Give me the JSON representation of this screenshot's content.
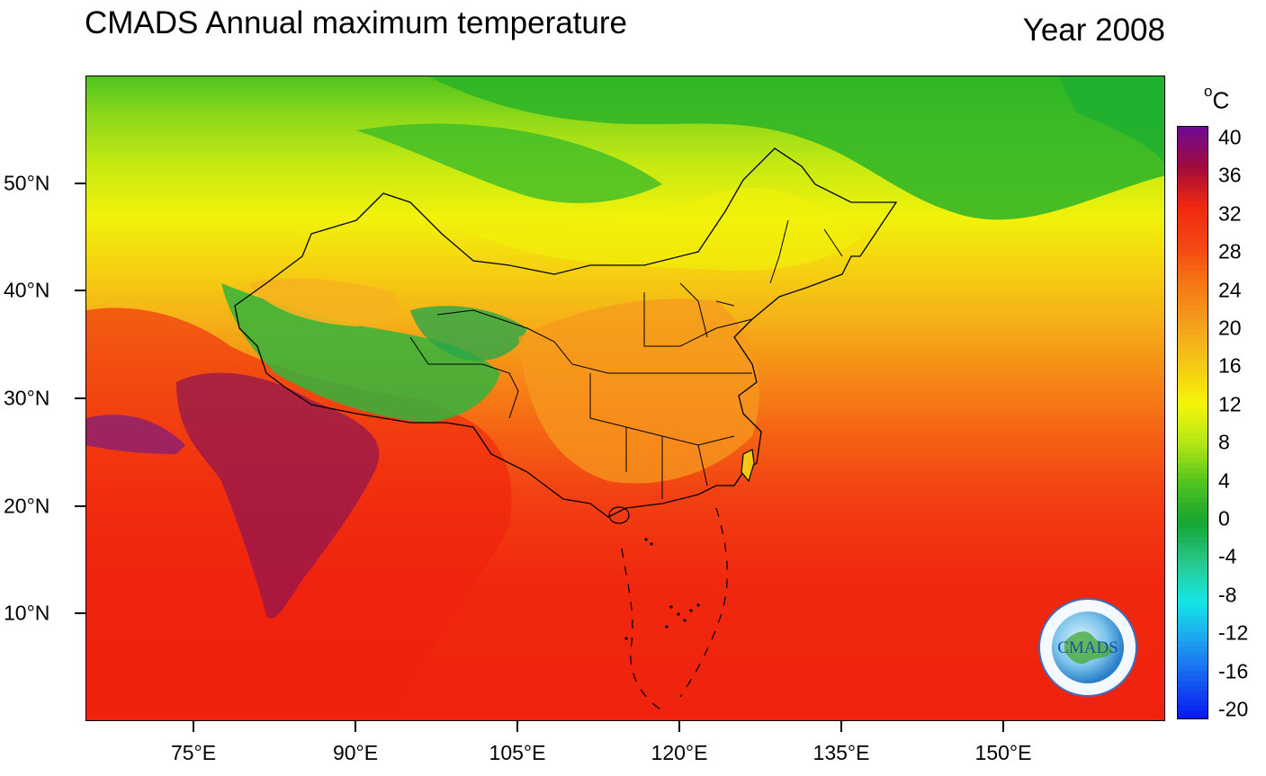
{
  "header": {
    "title": "CMADS Annual maximum temperature",
    "year_label": "Year 2008"
  },
  "map": {
    "lon_range": [
      65,
      165
    ],
    "lat_range": [
      0,
      60
    ],
    "y_ticks": [
      {
        "lat": 50,
        "label": "50°N"
      },
      {
        "lat": 40,
        "label": "40°N"
      },
      {
        "lat": 30,
        "label": "30°N"
      },
      {
        "lat": 20,
        "label": "20°N"
      },
      {
        "lat": 10,
        "label": "10°N"
      }
    ],
    "x_ticks": [
      {
        "lon": 75,
        "label": "75°E"
      },
      {
        "lon": 90,
        "label": "90°E"
      },
      {
        "lon": 105,
        "label": "105°E"
      },
      {
        "lon": 120,
        "label": "120°E"
      },
      {
        "lon": 135,
        "label": "135°E"
      },
      {
        "lon": 150,
        "label": "150°E"
      }
    ]
  },
  "colorbar": {
    "unit_sup": "o",
    "unit_main": "C",
    "min": -20,
    "max": 40,
    "labels": [
      "40",
      "36",
      "32",
      "28",
      "24",
      "20",
      "16",
      "12",
      "8",
      "4",
      "0",
      "-4",
      "-8",
      "-12",
      "-16",
      "-20"
    ],
    "stops": [
      {
        "value": -20,
        "color": "#0a14f0"
      },
      {
        "value": -12,
        "color": "#1ea0f0"
      },
      {
        "value": -8,
        "color": "#14e6e6"
      },
      {
        "value": -4,
        "color": "#28c88c"
      },
      {
        "value": 0,
        "color": "#14a532"
      },
      {
        "value": 4,
        "color": "#50c31e"
      },
      {
        "value": 8,
        "color": "#b4e614"
      },
      {
        "value": 12,
        "color": "#f5f50a"
      },
      {
        "value": 16,
        "color": "#f5c814"
      },
      {
        "value": 20,
        "color": "#f5a01e"
      },
      {
        "value": 24,
        "color": "#f57814"
      },
      {
        "value": 28,
        "color": "#f54614"
      },
      {
        "value": 32,
        "color": "#f0280f"
      },
      {
        "value": 36,
        "color": "#a00a3c"
      },
      {
        "value": 40,
        "color": "#6e0a96"
      }
    ]
  },
  "logo": {
    "text": "CMADS"
  }
}
